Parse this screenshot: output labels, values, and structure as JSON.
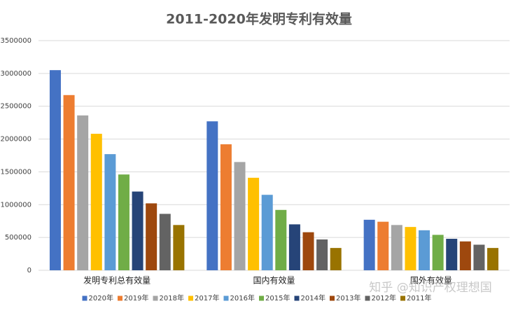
{
  "chart_data": {
    "type": "bar",
    "title": "2011-2020年发明专利有效量",
    "categories": [
      "发明专利总有效量",
      "国内有效量",
      "国外有效量"
    ],
    "series": [
      {
        "name": "2020年",
        "color": "#4472c4",
        "values": [
          3050000,
          2270000,
          770000
        ]
      },
      {
        "name": "2019年",
        "color": "#ed7d31",
        "values": [
          2670000,
          1920000,
          740000
        ]
      },
      {
        "name": "2018年",
        "color": "#a5a5a5",
        "values": [
          2360000,
          1650000,
          690000
        ]
      },
      {
        "name": "2017年",
        "color": "#ffc000",
        "values": [
          2080000,
          1410000,
          660000
        ]
      },
      {
        "name": "2016年",
        "color": "#5b9bd5",
        "values": [
          1770000,
          1150000,
          610000
        ]
      },
      {
        "name": "2015年",
        "color": "#70ad47",
        "values": [
          1460000,
          920000,
          540000
        ]
      },
      {
        "name": "2014年",
        "color": "#264478",
        "values": [
          1200000,
          700000,
          480000
        ]
      },
      {
        "name": "2013年",
        "color": "#9e480e",
        "values": [
          1020000,
          580000,
          440000
        ]
      },
      {
        "name": "2012年",
        "color": "#636363",
        "values": [
          860000,
          470000,
          390000
        ]
      },
      {
        "name": "2011年",
        "color": "#997300",
        "values": [
          690000,
          340000,
          340000
        ]
      }
    ],
    "ylim": [
      0,
      3500000
    ],
    "yticks": [
      0,
      500000,
      1000000,
      1500000,
      2000000,
      2500000,
      3000000,
      3500000
    ],
    "grid": true,
    "legend": "bottom",
    "watermark": "知乎 @知识产权理想国"
  }
}
